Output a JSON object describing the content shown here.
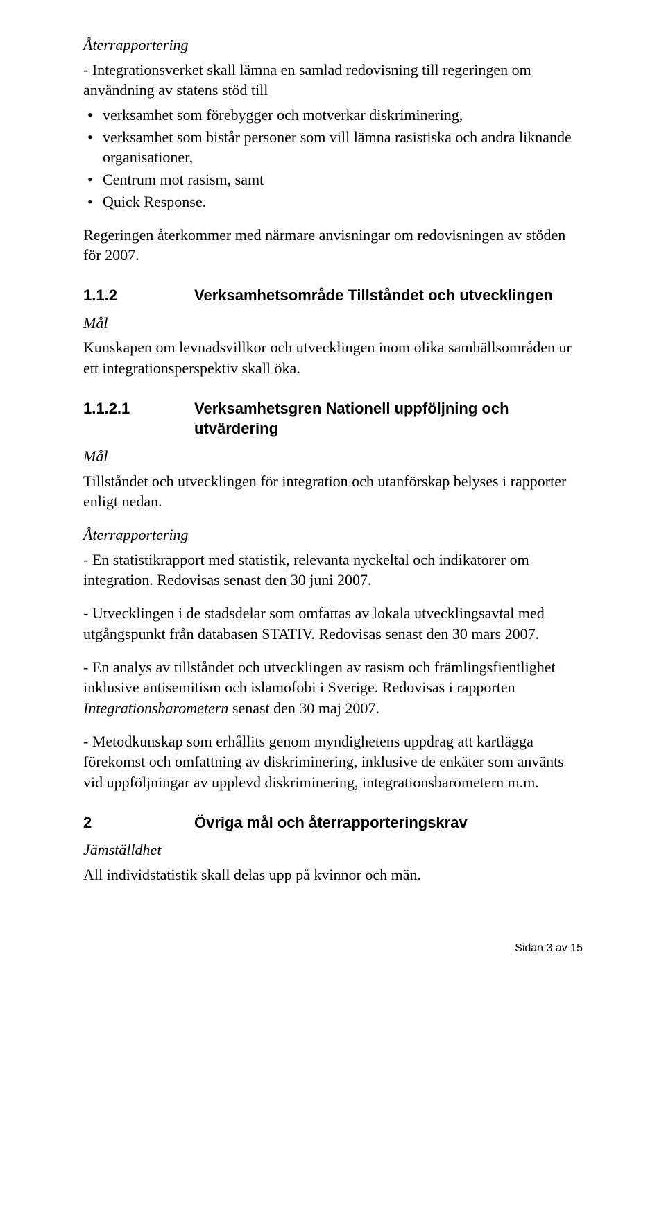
{
  "p1_title": "Återrapportering",
  "p1_line1": "- Integrationsverket skall lämna en samlad redovisning till regeringen om användning av statens stöd till",
  "bullets1": [
    "verksamhet som förebygger och motverkar diskriminering,",
    "verksamhet som bistår personer som vill lämna rasistiska och andra liknande organisationer,",
    "Centrum mot rasism, samt",
    "Quick Response."
  ],
  "p2": "Regeringen återkommer med närmare anvisningar om redovisningen av stöden för 2007.",
  "h112_num": "1.1.2",
  "h112_title": "Verksamhetsområde Tillståndet och utvecklingen",
  "mal": "Mål",
  "p3": "Kunskapen om levnadsvillkor och utvecklingen inom olika samhällsområden ur ett integrationsperspektiv skall öka.",
  "h1121_num": "1.1.2.1",
  "h1121_title": "Verksamhetsgren Nationell uppföljning och utvärdering",
  "p4": "Tillståndet och utvecklingen för integration och utanförskap belyses i rapporter enligt nedan.",
  "p5_title": "Återrapportering",
  "p5": "- En statistikrapport med statistik, relevanta nyckeltal och indikatorer om integration. Redovisas senast den 30 juni 2007.",
  "p6": "- Utvecklingen i de stadsdelar som omfattas av lokala utvecklingsavtal med utgångspunkt från databasen STATIV. Redovisas senast den 30 mars 2007.",
  "p7a": "- En analys av tillståndet och utvecklingen av rasism och främlingsfientlighet inklusive antisemitism och islamofobi i Sverige. Redovisas i rapporten ",
  "p7_italic": "Integrationsbarometern",
  "p7b": " senast den 30 maj 2007.",
  "p8": "- Metodkunskap som erhållits genom myndighetens uppdrag att kartlägga förekomst och omfattning av diskriminering, inklusive  de enkäter som använts vid uppföljningar av upplevd diskriminering, integrationsbarometern m.m.",
  "h2_num": "2",
  "h2_title": "Övriga mål och återrapporteringskrav",
  "p9_title": "Jämställdhet",
  "p9": "All individstatistik skall delas upp på kvinnor och män.",
  "footer": "Sidan 3 av 15"
}
